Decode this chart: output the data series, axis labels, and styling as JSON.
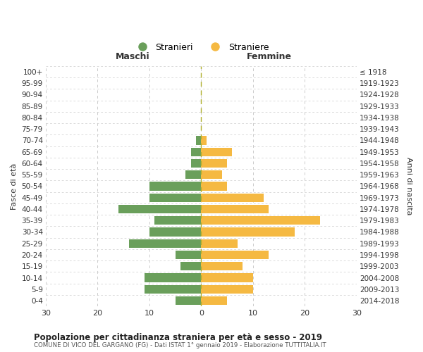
{
  "age_groups": [
    "0-4",
    "5-9",
    "10-14",
    "15-19",
    "20-24",
    "25-29",
    "30-34",
    "35-39",
    "40-44",
    "45-49",
    "50-54",
    "55-59",
    "60-64",
    "65-69",
    "70-74",
    "75-79",
    "80-84",
    "85-89",
    "90-94",
    "95-99",
    "100+"
  ],
  "birth_years": [
    "2014-2018",
    "2009-2013",
    "2004-2008",
    "1999-2003",
    "1994-1998",
    "1989-1993",
    "1984-1988",
    "1979-1983",
    "1974-1978",
    "1969-1973",
    "1964-1968",
    "1959-1963",
    "1954-1958",
    "1949-1953",
    "1944-1948",
    "1939-1943",
    "1934-1938",
    "1929-1933",
    "1924-1928",
    "1919-1923",
    "≤ 1918"
  ],
  "males": [
    5,
    11,
    11,
    4,
    5,
    14,
    10,
    9,
    16,
    10,
    10,
    3,
    2,
    2,
    1,
    0,
    0,
    0,
    0,
    0,
    0
  ],
  "females": [
    5,
    10,
    10,
    8,
    13,
    7,
    18,
    23,
    13,
    12,
    5,
    4,
    5,
    6,
    1,
    0,
    0,
    0,
    0,
    0,
    0
  ],
  "male_color": "#6a9f5b",
  "female_color": "#f5b942",
  "grid_color": "#cccccc",
  "center_line_color": "#b0b030",
  "xlim": 30,
  "title": "Popolazione per cittadinanza straniera per età e sesso - 2019",
  "subtitle": "COMUNE DI VICO DEL GARGANO (FG) - Dati ISTAT 1° gennaio 2019 - Elaborazione TUTTITALIA.IT",
  "xlabel_left": "Maschi",
  "xlabel_right": "Femmine",
  "ylabel_left": "Fasce di età",
  "ylabel_right": "Anni di nascita",
  "legend_male": "Stranieri",
  "legend_female": "Straniere",
  "bg_color": "#ffffff",
  "bar_height": 0.75
}
